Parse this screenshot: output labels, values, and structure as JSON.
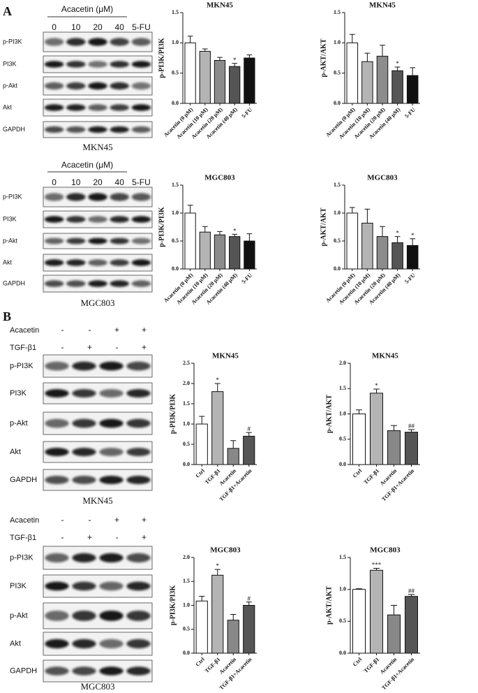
{
  "panel_labels": [
    "A",
    "B"
  ],
  "blots": [
    {
      "header": "Acacetin (μM)",
      "lanes": [
        "0",
        "10",
        "20",
        "40",
        "5-FU"
      ],
      "rows": [
        "p-PI3K",
        "PI3K",
        "p-Akt",
        "Akt",
        "GAPDH"
      ],
      "caption": "MKN45"
    },
    {
      "header": "Acacetin (μM)",
      "lanes": [
        "0",
        "10",
        "20",
        "40",
        "5-FU"
      ],
      "rows": [
        "p-PI3K",
        "PI3K",
        "p-Akt",
        "Akt",
        "GAPDH"
      ],
      "caption": "MGC803"
    },
    {
      "treatments": [
        {
          "name": "Acacetin",
          "signs": [
            "-",
            "-",
            "+",
            "+"
          ]
        },
        {
          "name": "TGF-β1",
          "signs": [
            "-",
            "+",
            "-",
            "+"
          ]
        }
      ],
      "rows": [
        "p-PI3K",
        "PI3K",
        "p-Akt",
        "Akt",
        "GAPDH"
      ],
      "caption": "MKN45"
    },
    {
      "treatments": [
        {
          "name": "Acacetin",
          "signs": [
            "-",
            "-",
            "+",
            "+"
          ]
        },
        {
          "name": "TGF-β1",
          "signs": [
            "-",
            "+",
            "-",
            "+"
          ]
        }
      ],
      "rows": [
        "p-PI3K",
        "PI3K",
        "p-Akt",
        "Akt",
        "GAPDH"
      ],
      "caption": "MGC803"
    }
  ],
  "chart_data": [
    {
      "type": "bar",
      "title": "MKN45",
      "ylabel": "p-PI3K/PI3K",
      "categories": [
        "Acacetin (0 μM)",
        "Acacetin (10 μM)",
        "Acacetin (20 μM)",
        "Acacetin (40 μM)",
        "5-FU"
      ],
      "values": [
        1.0,
        0.86,
        0.71,
        0.61,
        0.75
      ],
      "errors": [
        0.11,
        0.04,
        0.05,
        0.05,
        0.05
      ],
      "annotations": [
        null,
        null,
        null,
        "*",
        null
      ],
      "colors": [
        "#ffffff",
        "#b4b4b4",
        "#8c8c8c",
        "#555555",
        "#111111"
      ],
      "ylim": [
        0,
        1.5
      ],
      "yticks": [
        {
          "value": 0,
          "label": "0.0"
        },
        0.5,
        {
          "value": 1,
          "label": "1.0"
        },
        1.5
      ]
    },
    {
      "type": "bar",
      "title": "MKN45",
      "ylabel": "p-AKT/AKT",
      "categories": [
        "Acacetin (0 μM)",
        "Acacetin (10 μM)",
        "Acacetin (20 μM)",
        "Acacetin (40 μM)",
        "5-FU"
      ],
      "values": [
        1.0,
        0.69,
        0.78,
        0.54,
        0.46
      ],
      "errors": [
        0.14,
        0.14,
        0.18,
        0.06,
        0.13
      ],
      "annotations": [
        null,
        null,
        null,
        "*",
        null
      ],
      "colors": [
        "#ffffff",
        "#b4b4b4",
        "#8c8c8c",
        "#555555",
        "#111111"
      ],
      "ylim": [
        0,
        1.5
      ],
      "yticks": [
        {
          "value": 0,
          "label": "0.0"
        },
        0.5,
        {
          "value": 1,
          "label": "1.0"
        },
        1.5
      ]
    },
    {
      "type": "bar",
      "title": "MGC803",
      "ylabel": "p-PI3K/PI3K",
      "categories": [
        "Acacetin (0 μM)",
        "Acacetin (10 μM)",
        "Acacetin (20 μM)",
        "Acacetin (40 μM)",
        "5-FU"
      ],
      "values": [
        1.0,
        0.66,
        0.61,
        0.58,
        0.5
      ],
      "errors": [
        0.14,
        0.1,
        0.06,
        0.04,
        0.13
      ],
      "annotations": [
        null,
        null,
        null,
        "*",
        null
      ],
      "colors": [
        "#ffffff",
        "#b4b4b4",
        "#8c8c8c",
        "#555555",
        "#111111"
      ],
      "ylim": [
        0,
        1.5
      ],
      "yticks": [
        {
          "value": 0,
          "label": "0.0"
        },
        0.5,
        {
          "value": 1,
          "label": "1.0"
        },
        1.5
      ]
    },
    {
      "type": "bar",
      "title": "MGC803",
      "ylabel": "p-AKT/AKT",
      "categories": [
        "Acacetin (0 μM)",
        "Acacetin (10 μM)",
        "Acacetin (20 μM)",
        "Acacetin (40 μM)",
        "5-FU"
      ],
      "values": [
        1.0,
        0.82,
        0.58,
        0.47,
        0.42
      ],
      "errors": [
        0.1,
        0.25,
        0.18,
        0.11,
        0.12
      ],
      "annotations": [
        null,
        null,
        null,
        "*",
        "*"
      ],
      "colors": [
        "#ffffff",
        "#b4b4b4",
        "#8c8c8c",
        "#555555",
        "#111111"
      ],
      "ylim": [
        0,
        1.5
      ],
      "yticks": [
        {
          "value": 0,
          "label": "0.0"
        },
        0.5,
        {
          "value": 1,
          "label": "1.0"
        },
        1.5
      ]
    },
    {
      "type": "bar",
      "title": "MKN45",
      "ylabel": "p-PI3K/PI3K",
      "categories": [
        "Ctrl",
        "TGF-β1",
        "Acacetin",
        "TGF-β1+Acacetin"
      ],
      "values": [
        1.0,
        1.8,
        0.4,
        0.7
      ],
      "errors": [
        0.19,
        0.2,
        0.19,
        0.09
      ],
      "annotations": [
        null,
        "*",
        null,
        "#"
      ],
      "colors": [
        "#ffffff",
        "#b4b4b4",
        "#888888",
        "#555555"
      ],
      "ylim": [
        0,
        2.5
      ],
      "yticks": [
        {
          "value": 0,
          "label": "0.0"
        },
        0.5,
        {
          "value": 1,
          "label": "1.0"
        },
        1.5,
        {
          "value": 2,
          "label": "2.0"
        },
        2.5
      ]
    },
    {
      "type": "bar",
      "title": "MKN45",
      "ylabel": "p-AKT/AKT",
      "categories": [
        "Ctrl",
        "TGF-β1",
        "Acacetin",
        "TGF-β1+Acacetin"
      ],
      "values": [
        1.0,
        1.41,
        0.67,
        0.64
      ],
      "errors": [
        0.08,
        0.08,
        0.1,
        0.05
      ],
      "annotations": [
        null,
        "*",
        null,
        "##"
      ],
      "colors": [
        "#ffffff",
        "#b4b4b4",
        "#888888",
        "#555555"
      ],
      "ylim": [
        0,
        2
      ],
      "yticks": [
        {
          "value": 0,
          "label": "0.0"
        },
        0.5,
        {
          "value": 1,
          "label": "1.0"
        },
        1.5,
        {
          "value": 2,
          "label": "2.0"
        }
      ]
    },
    {
      "type": "bar",
      "title": "MGC803",
      "ylabel": "p-PI3K/PI3K",
      "categories": [
        "Ctrl",
        "TGF-β1",
        "Acacetin",
        "TGF-β1+Acacetin"
      ],
      "values": [
        1.09,
        1.63,
        0.69,
        1.0
      ],
      "errors": [
        0.1,
        0.12,
        0.12,
        0.07
      ],
      "annotations": [
        null,
        "*",
        null,
        "#"
      ],
      "colors": [
        "#ffffff",
        "#b4b4b4",
        "#888888",
        "#555555"
      ],
      "ylim": [
        0,
        2
      ],
      "yticks": [
        {
          "value": 0,
          "label": "0.0"
        },
        0.5,
        {
          "value": 1,
          "label": "1.0"
        },
        1.5,
        {
          "value": 2,
          "label": "2.0"
        }
      ]
    },
    {
      "type": "bar",
      "title": "MGC803",
      "ylabel": "p-AKT/AKT",
      "categories": [
        "Ctrl",
        "TGF-β1",
        "Acacetin",
        "TGF-β1+Acacetin"
      ],
      "values": [
        1.0,
        1.3,
        0.6,
        0.89
      ],
      "errors": [
        0.01,
        0.03,
        0.15,
        0.03
      ],
      "annotations": [
        null,
        "***",
        null,
        "##"
      ],
      "colors": [
        "#ffffff",
        "#b4b4b4",
        "#888888",
        "#555555"
      ],
      "ylim": [
        0,
        1.5
      ],
      "yticks": [
        {
          "value": 0,
          "label": "0.0"
        },
        0.5,
        {
          "value": 1,
          "label": "1.0"
        },
        1.5
      ]
    }
  ]
}
